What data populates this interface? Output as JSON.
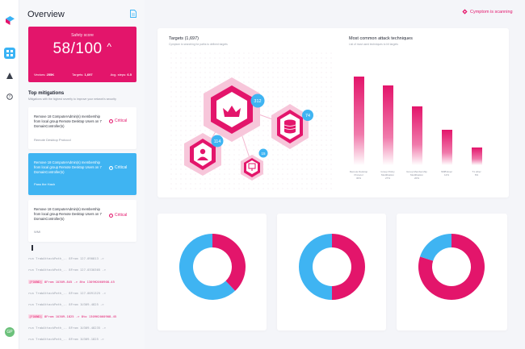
{
  "header": {
    "title": "Overview",
    "status": "Cymptom is scanning"
  },
  "colors": {
    "accent": "#e3156b",
    "blue": "#3fb4f2",
    "nav_active": "#39b3f5"
  },
  "nav": {
    "logo_icon": "cymptom-logo-icon",
    "items": [
      {
        "icon": "grid-icon",
        "active": true
      },
      {
        "icon": "warning-triangle-icon",
        "active": false
      },
      {
        "icon": "help-circle-icon",
        "active": false
      }
    ],
    "avatar": "GP"
  },
  "safety": {
    "label": "Safety score",
    "value": "58/100",
    "vectors_label": "Vectors:",
    "vectors": "255K",
    "targets_label": "Targets:",
    "targets": "1,697",
    "steps_label": "Avg. steps:",
    "steps": "6.5"
  },
  "mitigations": {
    "title": "Top mitigations",
    "subtitle": "Mitigations with the highest severity to improve your network's security",
    "items": [
      {
        "text": "Remove 18 ComputerAdmin(s) membership from local group Remote Desktop Users on 7 DomainController(s)",
        "severity": "Critical",
        "footer": "Remote Desktop Protocol"
      },
      {
        "text": "Remove 18 ComputerAdmin(s) membership from local group Remote Desktop Users on 7 DomainController(s)",
        "severity": "Critical",
        "footer": "Pass the Hash"
      },
      {
        "text": "Remove 18 ComputerAdmin(s) membership from local group Remote Desktop Users on 7 DomainController(s)",
        "severity": "Critical",
        "footer": "WMI"
      }
    ]
  },
  "log": [
    {
      "tag": "",
      "text": "run TrabAttackPath_.. 8From  127-090813  ->"
    },
    {
      "tag": "",
      "text": "run TrabAttackPath_.. 8From  127-0330305  ->"
    },
    {
      "tag": "[FOUND]",
      "text": "8From 1U309-845 -> 8to 1309H2060908-45"
    },
    {
      "tag": "",
      "text": "run TrabAttackPath_.. 8From  127-0091325  ->"
    },
    {
      "tag": "",
      "text": "run TrabAttackPath_.. 8From  1U309-4825  ->"
    },
    {
      "tag": "[FOUND]",
      "text": "8From 1U309-1825 -> 8to 1309H2060908-45"
    },
    {
      "tag": "",
      "text": "run TrabAttackPath_.. 8From  1U309-48235 ->"
    },
    {
      "tag": "",
      "text": "run TrabAttackPath_.. 8From  1U309-1825  ->"
    }
  ],
  "targets": {
    "title": "Targets (1,697)",
    "subtitle": "Cymptom is searching for paths to defined targets",
    "nodes": [
      {
        "icon": "crown-icon",
        "count": "312"
      },
      {
        "icon": "database-icon",
        "count": "74"
      },
      {
        "icon": "user-icon",
        "count": "114"
      },
      {
        "icon": "monitor-icon",
        "count": "15"
      }
    ]
  },
  "attacks": {
    "title": "Most common attack techniques",
    "subtitle": "List of most used techniques to hit targets",
    "chart_data": {
      "type": "bar",
      "categories": [
        "Remote Desktop Protocol",
        "Group Policy Modification",
        "Group Membership Modification",
        "SMB Exec",
        "T1 other"
      ],
      "value_labels": [
        "30%",
        "27%",
        "20%",
        "12%",
        "6%"
      ],
      "values": [
        30,
        27,
        20,
        12,
        6
      ]
    }
  },
  "donuts": [
    {
      "blue": 62,
      "pink": 38
    },
    {
      "blue": 50,
      "pink": 50
    },
    {
      "blue": 20,
      "pink": 80
    }
  ]
}
